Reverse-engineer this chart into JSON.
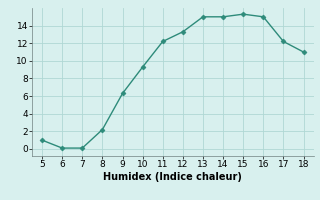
{
  "x": [
    5,
    6,
    7,
    8,
    9,
    10,
    11,
    12,
    13,
    14,
    15,
    16,
    17,
    18
  ],
  "y": [
    1.0,
    0.1,
    0.1,
    2.2,
    6.3,
    9.3,
    12.2,
    13.3,
    15.0,
    15.0,
    15.3,
    15.0,
    12.2,
    11.0
  ],
  "xlim_min": 4.5,
  "xlim_max": 18.5,
  "ylim_min": -0.8,
  "ylim_max": 16.0,
  "xticks": [
    5,
    6,
    7,
    8,
    9,
    10,
    11,
    12,
    13,
    14,
    15,
    16,
    17,
    18
  ],
  "yticks": [
    0,
    2,
    4,
    6,
    8,
    10,
    12,
    14
  ],
  "xlabel": "Humidex (Indice chaleur)",
  "line_color": "#2e8b7a",
  "marker": "D",
  "marker_size": 2.5,
  "bg_color": "#d8f0ee",
  "grid_color": "#b0d8d4",
  "line_width": 1.0,
  "xlabel_fontsize": 7,
  "tick_fontsize": 6.5
}
